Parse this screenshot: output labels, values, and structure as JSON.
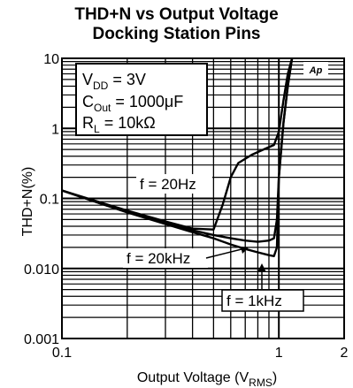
{
  "chart_data": {
    "type": "line",
    "title": "THD+N vs Output Voltage",
    "subtitle": "Docking Station Pins",
    "xlabel": "Output Voltage (V",
    "xlabel_sub": "RMS",
    "xlabel_end": ")",
    "ylabel": "THD+N(%)",
    "xscale": "log",
    "yscale": "log",
    "xlim": [
      0.1,
      2
    ],
    "ylim": [
      0.001,
      10
    ],
    "grid": true,
    "x_ticks": [
      {
        "v": 0.1,
        "label": "0.1"
      },
      {
        "v": 1,
        "label": "1"
      },
      {
        "v": 2,
        "label": "2"
      }
    ],
    "y_ticks": [
      {
        "v": 0.001,
        "label": "0.001"
      },
      {
        "v": 0.01,
        "label": "0.010"
      },
      {
        "v": 0.1,
        "label": "0.1"
      },
      {
        "v": 1,
        "label": "1"
      },
      {
        "v": 10,
        "label": "10"
      }
    ],
    "logo": "Ap",
    "conditions": [
      {
        "main": "V",
        "sub": "DD",
        "rest": " = 3V"
      },
      {
        "main": "C",
        "sub": "Out",
        "rest": " = 1000μF"
      },
      {
        "main": "R",
        "sub": "L",
        "rest": "  =  10kΩ"
      }
    ],
    "series": [
      {
        "name": "f = 20Hz",
        "points": [
          [
            0.1,
            0.13
          ],
          [
            0.15,
            0.088
          ],
          [
            0.2,
            0.067
          ],
          [
            0.3,
            0.047
          ],
          [
            0.4,
            0.037
          ],
          [
            0.5,
            0.036
          ],
          [
            0.55,
            0.08
          ],
          [
            0.6,
            0.2
          ],
          [
            0.65,
            0.32
          ],
          [
            0.75,
            0.42
          ],
          [
            0.85,
            0.5
          ],
          [
            0.95,
            0.58
          ],
          [
            1.0,
            0.9
          ],
          [
            1.05,
            2.5
          ],
          [
            1.1,
            6
          ],
          [
            1.15,
            10
          ]
        ]
      },
      {
        "name": "f = 1kHz",
        "points": [
          [
            0.1,
            0.13
          ],
          [
            0.15,
            0.085
          ],
          [
            0.2,
            0.064
          ],
          [
            0.3,
            0.044
          ],
          [
            0.4,
            0.035
          ],
          [
            0.5,
            0.03
          ],
          [
            0.6,
            0.027
          ],
          [
            0.7,
            0.025
          ],
          [
            0.8,
            0.024
          ],
          [
            0.9,
            0.025
          ],
          [
            0.95,
            0.027
          ],
          [
            0.98,
            0.05
          ],
          [
            1.0,
            0.2
          ],
          [
            1.05,
            1.2
          ],
          [
            1.1,
            4
          ],
          [
            1.15,
            10
          ]
        ]
      },
      {
        "name": "f = 20kHz",
        "points": [
          [
            0.1,
            0.13
          ],
          [
            0.15,
            0.085
          ],
          [
            0.2,
            0.063
          ],
          [
            0.3,
            0.043
          ],
          [
            0.4,
            0.033
          ],
          [
            0.5,
            0.027
          ],
          [
            0.6,
            0.022
          ],
          [
            0.7,
            0.019
          ],
          [
            0.8,
            0.017
          ],
          [
            0.9,
            0.0155
          ],
          [
            0.95,
            0.015
          ],
          [
            0.98,
            0.02
          ],
          [
            1.0,
            0.2
          ],
          [
            1.05,
            1.2
          ],
          [
            1.1,
            4
          ],
          [
            1.15,
            10
          ]
        ]
      }
    ],
    "labels": {
      "f20Hz": "f = 20Hz",
      "f20kHz": "f = 20kHz",
      "f1kHz": "f = 1kHz"
    }
  }
}
